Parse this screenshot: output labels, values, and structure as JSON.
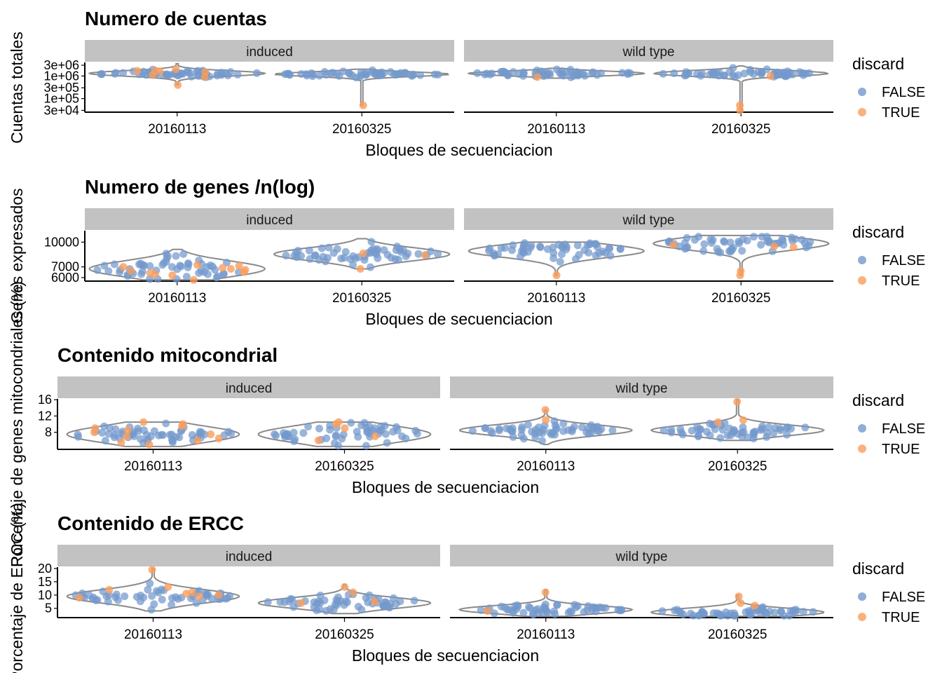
{
  "chart_data": [
    {
      "type": "violin",
      "title": "Numero de cuentas",
      "xlabel": "Bloques de secuenciacion",
      "ylabel": "Cuentas totales",
      "y_scale": "log10",
      "y_ticks": [
        {
          "label": "3e+04",
          "v": 30000
        },
        {
          "label": "1e+05",
          "v": 100000
        },
        {
          "label": "3e+05",
          "v": 300000
        },
        {
          "label": "1e+06",
          "v": 1000000
        },
        {
          "label": "3e+06",
          "v": 3000000
        }
      ],
      "ylim": [
        25000,
        4000000
      ],
      "facets": [
        {
          "name": "induced",
          "categories": [
            {
              "x": "20160113",
              "center": 1300000,
              "spread": 0.12,
              "min": 400000,
              "max": 3500000,
              "width": 0.95,
              "true_points": [
                400000,
                1500000,
                1600000,
                1800000,
                2000000,
                900000,
                1100000,
                1700000
              ]
            },
            {
              "x": "20160325",
              "center": 1200000,
              "spread": 0.1,
              "min": 50000,
              "max": 2000000,
              "width": 0.95,
              "true_points": [
                50000
              ]
            }
          ]
        },
        {
          "name": "wild type",
          "categories": [
            {
              "x": "20160113",
              "center": 1300000,
              "spread": 0.1,
              "min": 800000,
              "max": 2200000,
              "width": 0.95,
              "true_points": [
                900000
              ]
            },
            {
              "x": "20160325",
              "center": 1300000,
              "spread": 0.12,
              "min": 30000,
              "max": 2800000,
              "width": 0.95,
              "true_points": [
                50000,
                30000,
                1000000
              ]
            }
          ]
        }
      ]
    },
    {
      "type": "violin",
      "title": "Numero de genes /n(log)",
      "xlabel": "Bloques de secuenciacion",
      "ylabel": "Genes expresados",
      "y_scale": "log10",
      "y_ticks": [
        {
          "label": "6000",
          "v": 6000
        },
        {
          "label": "7000",
          "v": 7000
        },
        {
          "label": "10000",
          "v": 10000
        }
      ],
      "ylim": [
        5700,
        11800
      ],
      "facets": [
        {
          "name": "induced",
          "categories": [
            {
              "x": "20160113",
              "center": 6800,
              "spread": 0.05,
              "min": 5800,
              "max": 9000,
              "width": 0.95,
              "true_points": [
                6200,
                6400,
                6700,
                6900,
                7100,
                6300,
                6600,
                7000,
                5800,
                6500,
                6800,
                7200
              ]
            },
            {
              "x": "20160325",
              "center": 8400,
              "spread": 0.04,
              "min": 6800,
              "max": 10500,
              "width": 0.95,
              "true_points": [
                6800,
                8300,
                8500
              ]
            }
          ]
        },
        {
          "name": "wild type",
          "categories": [
            {
              "x": "20160113",
              "center": 8800,
              "spread": 0.04,
              "min": 6200,
              "max": 10000,
              "width": 0.95,
              "true_points": [
                6200
              ]
            },
            {
              "x": "20160325",
              "center": 9800,
              "spread": 0.04,
              "min": 6200,
              "max": 11000,
              "width": 0.95,
              "true_points": [
                6200,
                6600,
                9300,
                9400,
                9600
              ]
            }
          ]
        }
      ]
    },
    {
      "type": "violin",
      "title": "Contenido mitocondrial",
      "xlabel": "Bloques de secuenciacion",
      "ylabel": "Porcentaje de genes mitocondriales (%)",
      "y_scale": "linear",
      "y_ticks": [
        {
          "label": "8",
          "v": 8
        },
        {
          "label": "12",
          "v": 12
        },
        {
          "label": "16",
          "v": 16
        }
      ],
      "ylim": [
        3.8,
        16.2
      ],
      "facets": [
        {
          "name": "induced",
          "categories": [
            {
              "x": "20160113",
              "center": 7.5,
              "spread": 2.0,
              "min": 4.5,
              "max": 10.5,
              "width": 0.9,
              "true_points": [
                5,
                6,
                7,
                8,
                9,
                10,
                10.5,
                6.5,
                7.5,
                8.5,
                9.5,
                5.5
              ]
            },
            {
              "x": "20160325",
              "center": 7.5,
              "spread": 2.0,
              "min": 4.5,
              "max": 10.5,
              "width": 0.9,
              "true_points": [
                10.5,
                10,
                9,
                7,
                6
              ]
            }
          ]
        },
        {
          "name": "wild type",
          "categories": [
            {
              "x": "20160113",
              "center": 8.5,
              "spread": 1.3,
              "min": 5,
              "max": 13.5,
              "width": 0.9,
              "true_points": [
                13.5,
                11
              ]
            },
            {
              "x": "20160325",
              "center": 8.5,
              "spread": 1.3,
              "min": 6,
              "max": 16,
              "width": 0.9,
              "true_points": [
                15.5,
                11,
                10.5
              ]
            }
          ]
        }
      ]
    },
    {
      "type": "violin",
      "title": "Contenido de ERCC",
      "xlabel": "Bloques de secuenciacion",
      "ylabel": "Porcentaje de ERCC (%)",
      "y_scale": "linear",
      "y_ticks": [
        {
          "label": "5",
          "v": 5
        },
        {
          "label": "10",
          "v": 10
        },
        {
          "label": "15",
          "v": 15
        },
        {
          "label": "20",
          "v": 20
        }
      ],
      "ylim": [
        1.5,
        20.5
      ],
      "facets": [
        {
          "name": "induced",
          "categories": [
            {
              "x": "20160113",
              "center": 9.5,
              "spread": 2.5,
              "min": 4,
              "max": 20,
              "width": 0.9,
              "true_points": [
                19.5,
                12,
                10.5,
                11,
                10,
                9,
                9.5,
                13
              ]
            },
            {
              "x": "20160325",
              "center": 7,
              "spread": 2.0,
              "min": 3,
              "max": 14,
              "width": 0.9,
              "true_points": [
                13,
                11,
                7,
                7.5
              ]
            }
          ]
        },
        {
          "name": "wild type",
          "categories": [
            {
              "x": "20160113",
              "center": 4.5,
              "spread": 1.5,
              "min": 2,
              "max": 12,
              "width": 0.9,
              "true_points": [
                11,
                4
              ]
            },
            {
              "x": "20160325",
              "center": 3.5,
              "spread": 1.5,
              "min": 2,
              "max": 10,
              "width": 0.9,
              "true_points": [
                9.5,
                7,
                6
              ]
            }
          ]
        }
      ]
    }
  ],
  "legend": {
    "title": "discard",
    "items": [
      {
        "label": "FALSE",
        "color": "#7398cc"
      },
      {
        "label": "TRUE",
        "color": "#f99e5c"
      }
    ]
  },
  "colors": {
    "false_point": "#7398cc",
    "true_point": "#f99e5c",
    "violin_line": "#8a8a8a",
    "strip_bg": "#c2c2c2"
  }
}
